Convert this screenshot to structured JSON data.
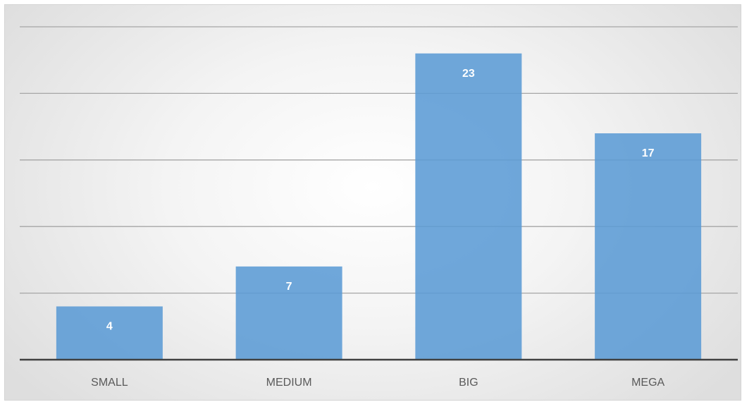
{
  "chart_data": {
    "type": "bar",
    "categories": [
      "SMALL",
      "MEDIUM",
      "BIG",
      "MEGA"
    ],
    "values": [
      4,
      7,
      23,
      17
    ],
    "title": "",
    "xlabel": "",
    "ylabel": "",
    "ylim": [
      0,
      25
    ],
    "gridline_step": 5,
    "grid": true,
    "y_axis_labels_shown": false,
    "data_labels": [
      "4",
      "7",
      "23",
      "17"
    ],
    "legend": "none",
    "bar_color": "#5b9bd5",
    "gridline_color": "#a6a6a6",
    "axis_color": "#404040",
    "data_label_color": "#ffffff",
    "tick_label_color": "#595959"
  }
}
